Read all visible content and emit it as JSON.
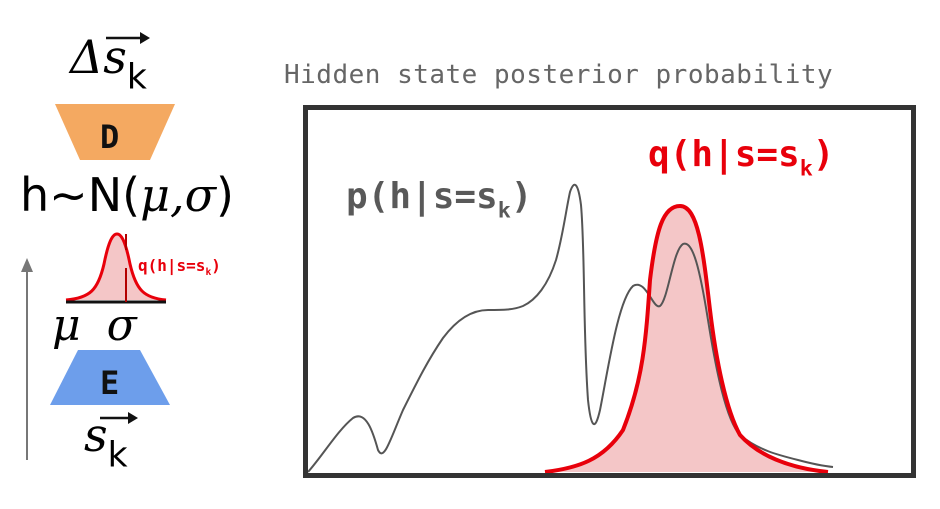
{
  "plot": {
    "title": "Hidden state posterior probability",
    "p_label": "p(h|s=s",
    "q_label": "q(h|s=s",
    "subscript": "k",
    "close_paren": ")",
    "colors": {
      "p_curve": "#555555",
      "q_curve": "#e8000b",
      "q_fill": "#f4c6c7",
      "frame": "#333333"
    }
  },
  "model": {
    "output_symbol": "Δs",
    "output_subscript": "k",
    "decoder_label": "D",
    "latent_prefix": "h~N(",
    "latent_params": "μ,σ",
    "latent_suffix": ")",
    "mini_q_label": "q(h|s=s",
    "mini_q_subscript": "k",
    "mini_q_close": ")",
    "mu_sigma": "μ σ",
    "encoder_label": "E",
    "input_symbol": "s",
    "input_subscript": "k",
    "colors": {
      "decoder": "#f4a961",
      "encoder": "#6d9eeb"
    }
  }
}
